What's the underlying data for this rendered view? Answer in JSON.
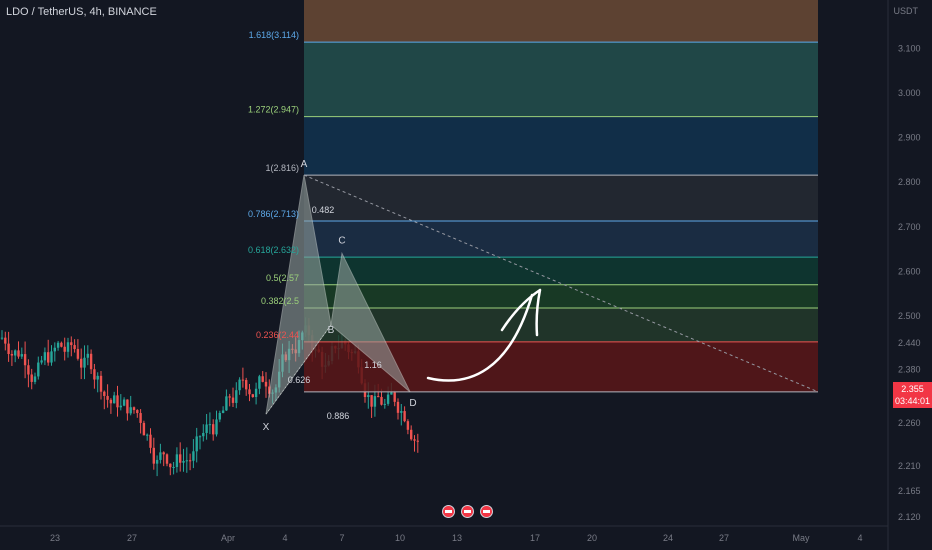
{
  "header": {
    "symbol": "LDO / TetherUS, 4h, BINANCE"
  },
  "price_axis": {
    "unit": "USDT",
    "ticks": [
      "3.100",
      "3.000",
      "2.900",
      "2.800",
      "2.700",
      "2.600",
      "2.500",
      "2.440",
      "2.380",
      "2.320",
      "2.260",
      "2.210",
      "2.165",
      "2.120"
    ],
    "last_price": "2.355",
    "countdown": "03:44:01",
    "last_price_color": "#f23645"
  },
  "time_axis": {
    "ticks": [
      "23",
      "27",
      "Apr",
      "4",
      "7",
      "10",
      "13",
      "17",
      "20",
      "24",
      "27",
      "May",
      "4"
    ]
  },
  "colors": {
    "up": "#26a69a",
    "down": "#ef5350",
    "bg": "#131722",
    "arrow": "#ffffff"
  },
  "event_icons": [
    "us-flag-icon",
    "us-flag-icon",
    "us-flag-icon"
  ],
  "chart_data": {
    "type": "candlestick",
    "fib_levels": [
      {
        "label": "1.618(3.114)",
        "value": 3.114
      },
      {
        "label": "1.272(2.947)",
        "value": 2.947
      },
      {
        "label": "1(2.816)",
        "value": 2.816
      },
      {
        "label": "0.786(2.713)",
        "value": 2.713
      },
      {
        "label": "0.618(2.632)",
        "value": 2.632
      },
      {
        "label": "0.5(2.57",
        "value": 2.57
      },
      {
        "label": "0.382(2.5",
        "value": 2.518
      },
      {
        "label": "0.236(2.44",
        "value": 2.442
      },
      {
        "label": "",
        "value": 2.33
      }
    ],
    "pattern_points": [
      {
        "label": "X",
        "date_index": 0,
        "price": 2.28
      },
      {
        "label": "A",
        "date_index": 1,
        "price": 2.816
      },
      {
        "label": "B",
        "date_index": 2,
        "price": 2.48
      },
      {
        "label": "C",
        "date_index": 3,
        "price": 2.64
      },
      {
        "label": "D",
        "date_index": 4,
        "price": 2.33
      }
    ],
    "ratios": [
      "0.482",
      "0.626",
      "1.16",
      "0.886"
    ],
    "ylim": [
      2.1,
      3.2
    ],
    "grid": false
  }
}
